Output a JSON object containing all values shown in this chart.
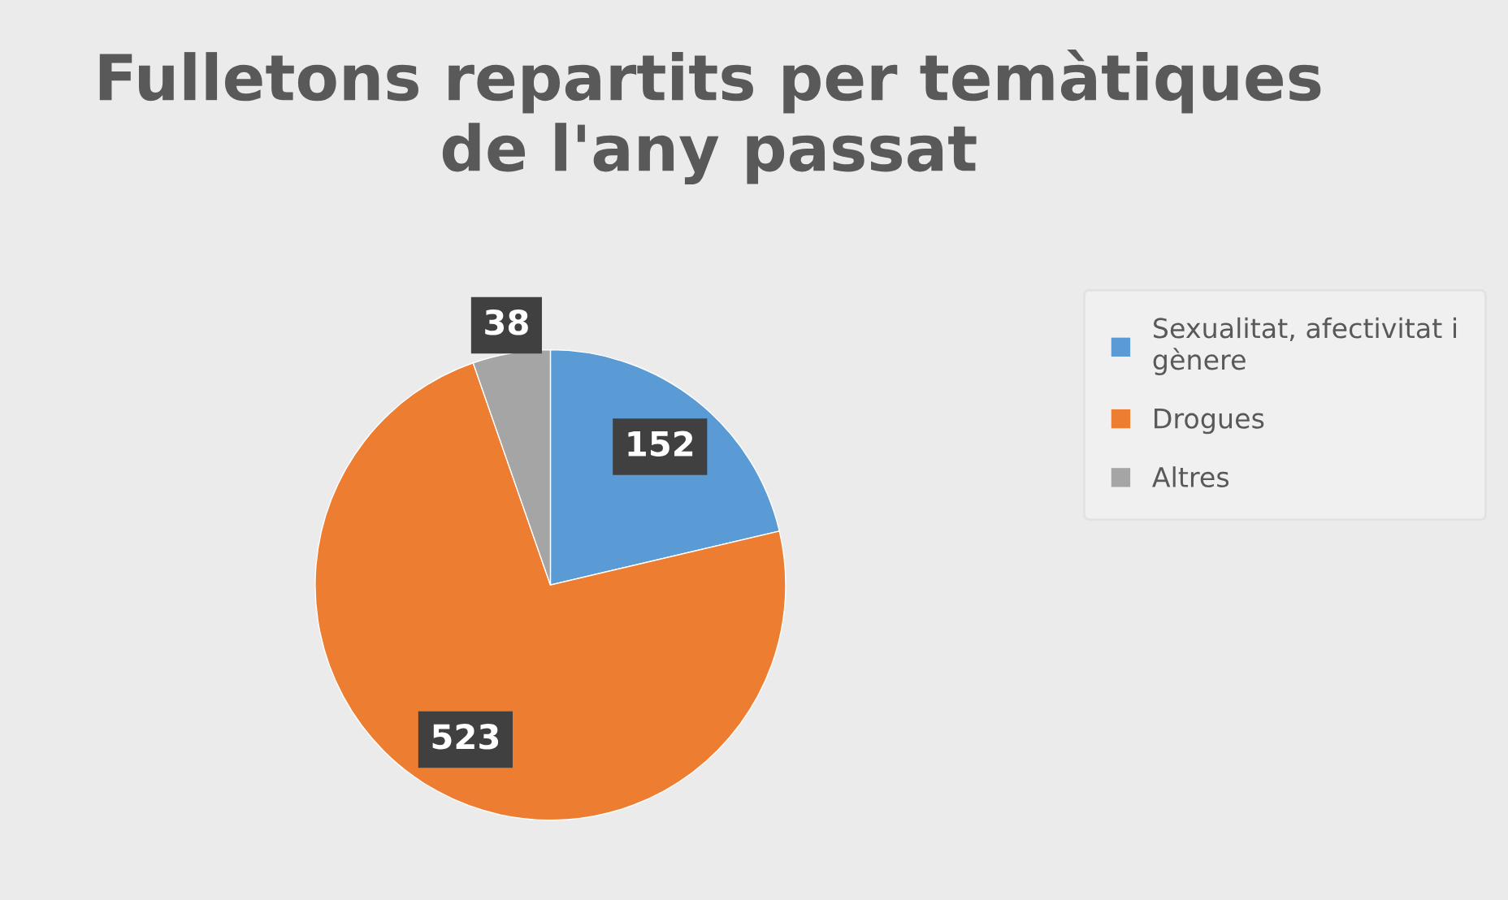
{
  "chart_data": {
    "type": "pie",
    "title": "Fulletons repartits per temàtiques\nde l'any passat",
    "categories": [
      "Sexualitat, afectivitat i gènere",
      "Drogues",
      "Altres"
    ],
    "values": [
      152,
      523,
      38
    ],
    "colors": [
      "#5b9bd5",
      "#ed7d31",
      "#a5a5a5"
    ],
    "data_labels": true,
    "legend": "right"
  }
}
